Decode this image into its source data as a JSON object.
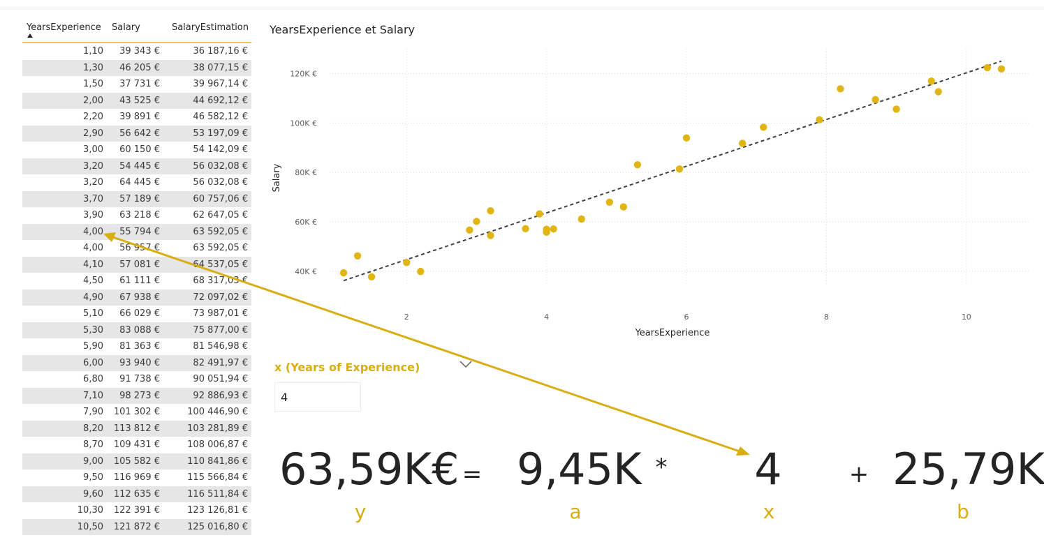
{
  "table": {
    "headers": {
      "years": "YearsExperience",
      "salary": "Salary",
      "estimation": "SalaryEstimation"
    },
    "rows": [
      [
        "1,10",
        "39 343 €",
        "36 187,16 €"
      ],
      [
        "1,30",
        "46 205 €",
        "38 077,15 €"
      ],
      [
        "1,50",
        "37 731 €",
        "39 967,14 €"
      ],
      [
        "2,00",
        "43 525 €",
        "44 692,12 €"
      ],
      [
        "2,20",
        "39 891 €",
        "46 582,12 €"
      ],
      [
        "2,90",
        "56 642 €",
        "53 197,09 €"
      ],
      [
        "3,00",
        "60 150 €",
        "54 142,09 €"
      ],
      [
        "3,20",
        "54 445 €",
        "56 032,08 €"
      ],
      [
        "3,20",
        "64 445 €",
        "56 032,08 €"
      ],
      [
        "3,70",
        "57 189 €",
        "60 757,06 €"
      ],
      [
        "3,90",
        "63 218 €",
        "62 647,05 €"
      ],
      [
        "4,00",
        "55 794 €",
        "63 592,05 €"
      ],
      [
        "4,00",
        "56 957 €",
        "63 592,05 €"
      ],
      [
        "4,10",
        "57 081 €",
        "64 537,05 €"
      ],
      [
        "4,50",
        "61 111 €",
        "68 317,03 €"
      ],
      [
        "4,90",
        "67 938 €",
        "72 097,02 €"
      ],
      [
        "5,10",
        "66 029 €",
        "73 987,01 €"
      ],
      [
        "5,30",
        "83 088 €",
        "75 877,00 €"
      ],
      [
        "5,90",
        "81 363 €",
        "81 546,98 €"
      ],
      [
        "6,00",
        "93 940 €",
        "82 491,97 €"
      ],
      [
        "6,80",
        "91 738 €",
        "90 051,94 €"
      ],
      [
        "7,10",
        "98 273 €",
        "92 886,93 €"
      ],
      [
        "7,90",
        "101 302 €",
        "100 446,90 €"
      ],
      [
        "8,20",
        "113 812 €",
        "103 281,89 €"
      ],
      [
        "8,70",
        "109 431 €",
        "108 006,87 €"
      ],
      [
        "9,00",
        "105 582 €",
        "110 841,86 €"
      ],
      [
        "9,50",
        "116 969 €",
        "115 566,84 €"
      ],
      [
        "9,60",
        "112 635 €",
        "116 511,84 €"
      ],
      [
        "10,30",
        "122 391 €",
        "123 126,81 €"
      ],
      [
        "10,50",
        "121 872 €",
        "125 016,80 €"
      ]
    ]
  },
  "chart_data": {
    "type": "scatter",
    "title": "YearsExperience et Salary",
    "xlabel": "YearsExperience",
    "ylabel": "Salary",
    "xlim": [
      0.9,
      10.9
    ],
    "ylim": [
      34000,
      130000
    ],
    "x_ticks": [
      2,
      4,
      6,
      8,
      10
    ],
    "y_ticks": [
      40000,
      60000,
      80000,
      100000,
      120000
    ],
    "y_tick_labels": [
      "40K €",
      "60K €",
      "80K €",
      "100K €",
      "120K €"
    ],
    "x": [
      1.1,
      1.3,
      1.5,
      2.0,
      2.2,
      2.9,
      3.0,
      3.2,
      3.2,
      3.7,
      3.9,
      4.0,
      4.0,
      4.1,
      4.5,
      4.9,
      5.1,
      5.3,
      5.9,
      6.0,
      6.8,
      7.1,
      7.9,
      8.2,
      8.7,
      9.0,
      9.5,
      9.6,
      10.3,
      10.5
    ],
    "y": [
      39343,
      46205,
      37731,
      43525,
      39891,
      56642,
      60150,
      54445,
      64445,
      57189,
      63218,
      55794,
      56957,
      57081,
      61111,
      67938,
      66029,
      83088,
      81363,
      93940,
      91738,
      98273,
      101302,
      113812,
      109431,
      105582,
      116969,
      112635,
      122391,
      121872
    ],
    "trendline": {
      "style": "dashed",
      "points": [
        [
          1.1,
          36187.16
        ],
        [
          10.5,
          125016.8
        ]
      ]
    },
    "grid": true,
    "point_color": "#e0b514",
    "trend_color": "#404040"
  },
  "slicer": {
    "label": "x (Years of Experience)",
    "value": "4",
    "chevron_icon": "chevron-down-icon"
  },
  "formula": {
    "y_value": "63,59K€",
    "equals": "=",
    "a_value": "9,45K",
    "times": "*",
    "x_value": "4",
    "plus": "+",
    "b_value": "25,79K",
    "y_label": "y",
    "a_label": "a",
    "x_label": "x",
    "b_label": "b"
  },
  "colors": {
    "accent": "#d9ae12",
    "row_alt": "#e6e6e6",
    "arrow": "#d9ae12"
  }
}
